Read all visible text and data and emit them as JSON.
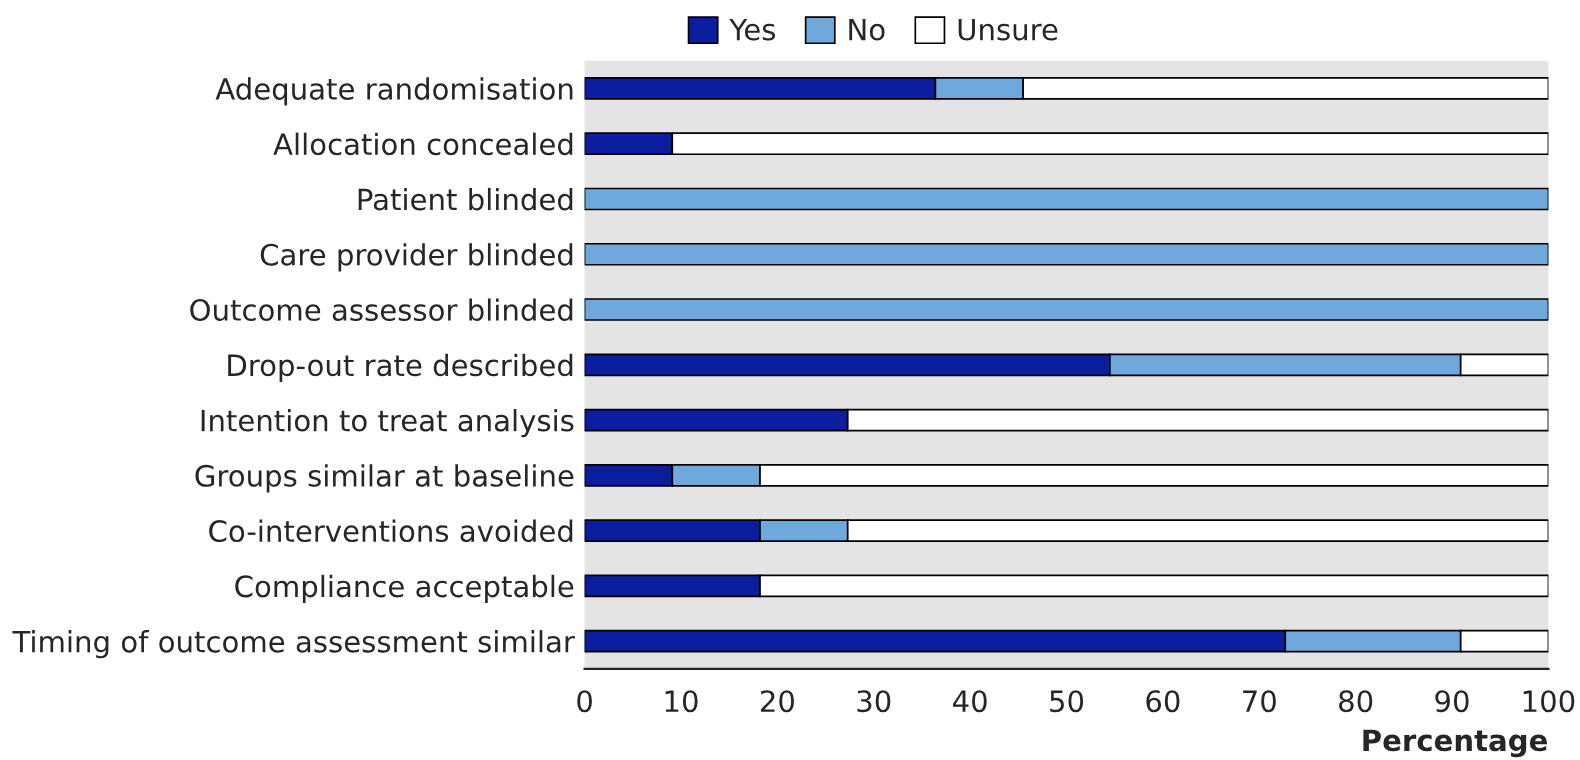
{
  "chart_data": {
    "type": "bar",
    "orientation": "horizontal",
    "stacked": true,
    "xlabel": "Percentage",
    "categories": [
      "Adequate randomisation",
      "Allocation concealed",
      "Patient blinded",
      "Care provider blinded",
      "Outcome assessor blinded",
      "Drop-out rate described",
      "Intention to treat analysis",
      "Groups similar at baseline",
      "Co-interventions avoided",
      "Compliance acceptable",
      "Timing of outcome assessment similar"
    ],
    "series": [
      {
        "name": "Yes",
        "color": "#0b1f9e",
        "values": [
          36.4,
          9.1,
          0,
          0,
          0,
          54.5,
          27.3,
          9.1,
          18.2,
          18.2,
          72.7
        ]
      },
      {
        "name": "No",
        "color": "#6fa8dc",
        "values": [
          9.1,
          0,
          100,
          100,
          100,
          36.4,
          0,
          9.1,
          9.1,
          0,
          18.2
        ]
      },
      {
        "name": "Unsure",
        "color": "#ffffff",
        "values": [
          54.5,
          90.9,
          0,
          0,
          0,
          9.1,
          72.7,
          81.8,
          72.7,
          81.8,
          9.1
        ]
      }
    ],
    "xlim": [
      0,
      100
    ],
    "xticks": [
      0,
      10,
      20,
      30,
      40,
      50,
      60,
      70,
      80,
      90,
      100
    ],
    "grid": false,
    "legend": "top"
  }
}
